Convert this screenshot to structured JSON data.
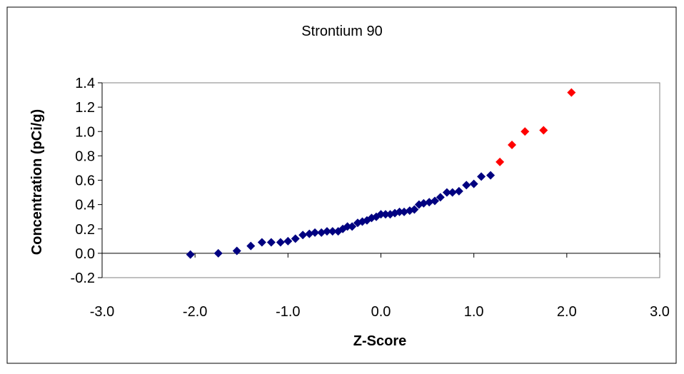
{
  "chart_data": {
    "type": "scatter",
    "title": "Strontium 90",
    "xlabel": "Z-Score",
    "ylabel": "Concentration (pCi/g)",
    "xlim": [
      -3.0,
      3.0
    ],
    "ylim": [
      -0.2,
      1.4
    ],
    "xticks": [
      "-3.0",
      "-2.0",
      "-1.0",
      "0.0",
      "1.0",
      "2.0",
      "3.0"
    ],
    "yticks": [
      "-0.2",
      "0.0",
      "0.2",
      "0.4",
      "0.6",
      "0.8",
      "1.0",
      "1.2",
      "1.4"
    ],
    "grid": false,
    "legend": "none",
    "series": [
      {
        "color": "#000080",
        "marker": "diamond",
        "x": [
          -2.05,
          -1.75,
          -1.55,
          -1.4,
          -1.28,
          -1.18,
          -1.08,
          -1.0,
          -0.92,
          -0.84,
          -0.77,
          -0.71,
          -0.64,
          -0.58,
          -0.52,
          -0.46,
          -0.41,
          -0.36,
          -0.31,
          -0.25,
          -0.2,
          -0.15,
          -0.1,
          -0.05,
          0.0,
          0.05,
          0.1,
          0.15,
          0.2,
          0.25,
          0.31,
          0.36,
          0.41,
          0.46,
          0.52,
          0.58,
          0.64,
          0.71,
          0.77,
          0.84,
          0.92,
          1.0,
          1.08,
          1.18
        ],
        "y": [
          -0.01,
          0.0,
          0.02,
          0.06,
          0.09,
          0.09,
          0.09,
          0.1,
          0.12,
          0.15,
          0.16,
          0.17,
          0.17,
          0.18,
          0.18,
          0.18,
          0.2,
          0.22,
          0.22,
          0.25,
          0.26,
          0.27,
          0.29,
          0.3,
          0.32,
          0.32,
          0.32,
          0.33,
          0.34,
          0.34,
          0.35,
          0.36,
          0.4,
          0.41,
          0.42,
          0.43,
          0.46,
          0.5,
          0.5,
          0.51,
          0.56,
          0.57,
          0.63,
          0.64
        ]
      },
      {
        "color": "#ff0000",
        "marker": "diamond",
        "x": [
          1.28,
          1.41,
          1.55,
          1.75,
          2.05
        ],
        "y": [
          0.75,
          0.89,
          1.0,
          1.01,
          1.32
        ]
      }
    ]
  }
}
